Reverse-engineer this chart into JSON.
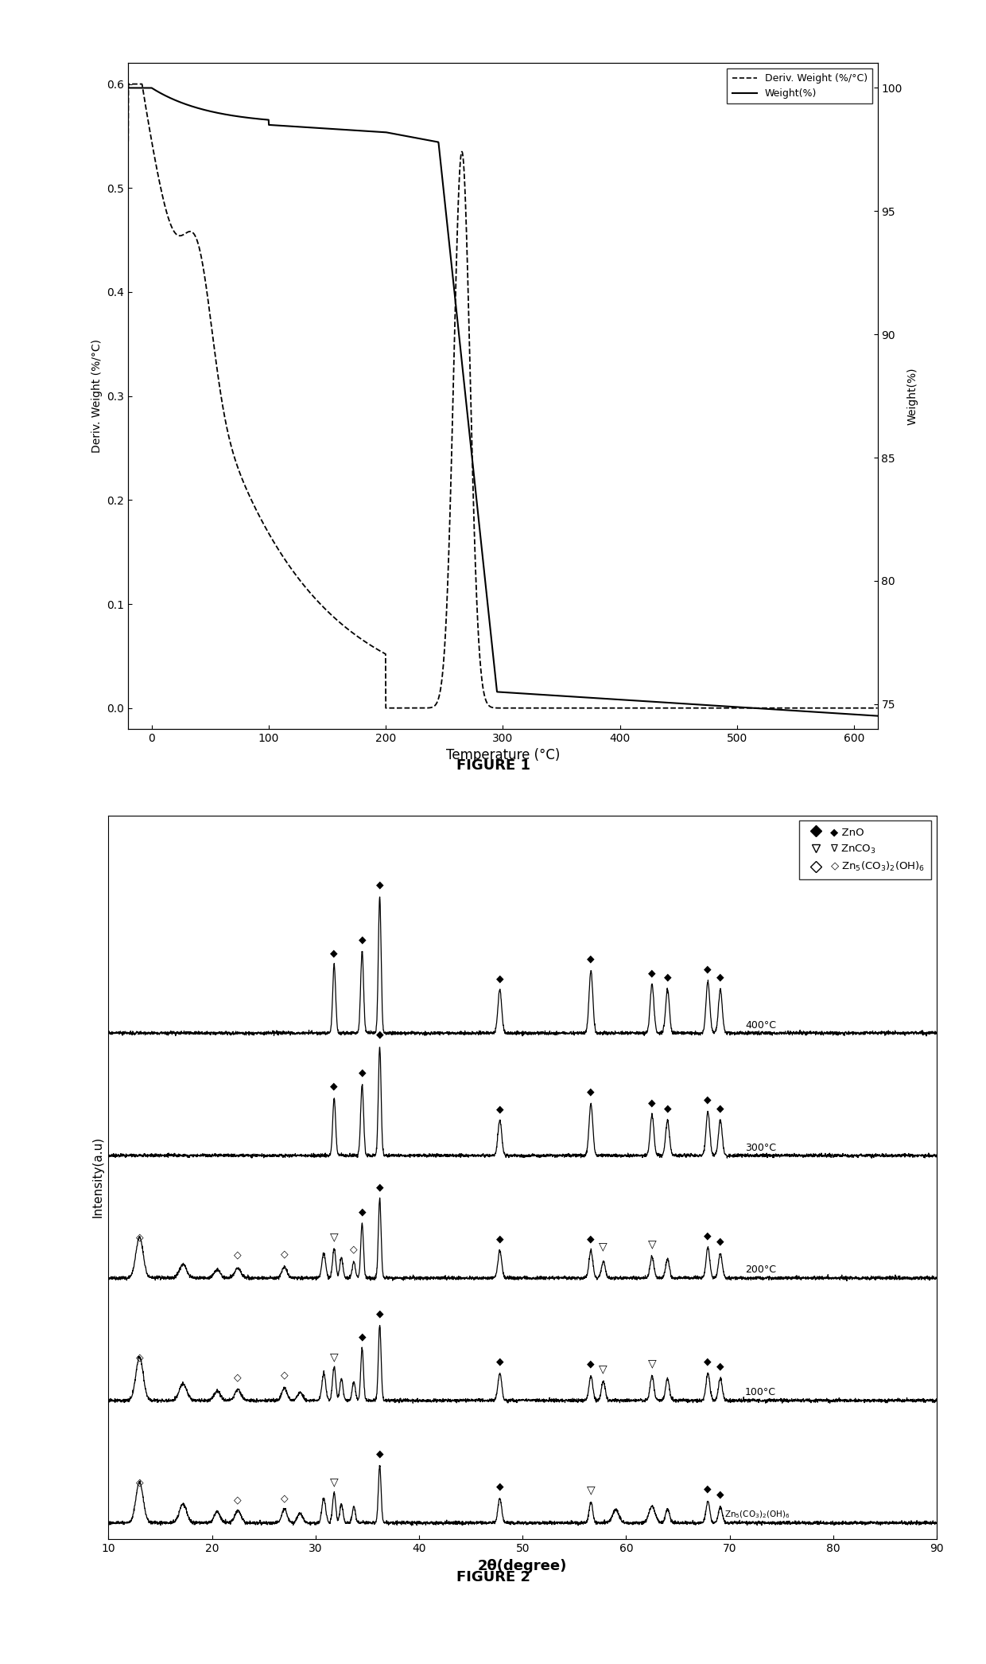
{
  "fig1": {
    "title": "FIGURE 1",
    "xlabel": "Temperature (°C)",
    "ylabel_left": "Deriv. Weight (%/°C)",
    "ylabel_right": "Weight(%)",
    "xlim": [
      -20,
      620
    ],
    "ylim_left": [
      -0.02,
      0.62
    ],
    "ylim_right": [
      74,
      101
    ],
    "yticks_left": [
      0.0,
      0.1,
      0.2,
      0.3,
      0.4,
      0.5,
      0.6
    ],
    "yticks_right": [
      75,
      80,
      85,
      90,
      95,
      100
    ],
    "xticks": [
      0,
      100,
      200,
      300,
      400,
      500,
      600
    ],
    "legend_entries": [
      "Deriv. Weight (%/°C)",
      "Weight(%)"
    ]
  },
  "fig2": {
    "title": "FIGURE 2",
    "xlabel": "2θ(degree)",
    "ylabel": "Intensity(a.u)",
    "xlim": [
      10,
      90
    ],
    "xticks": [
      10,
      20,
      30,
      40,
      50,
      60,
      70,
      80,
      90
    ]
  },
  "background_color": "#ffffff",
  "line_color": "#000000"
}
